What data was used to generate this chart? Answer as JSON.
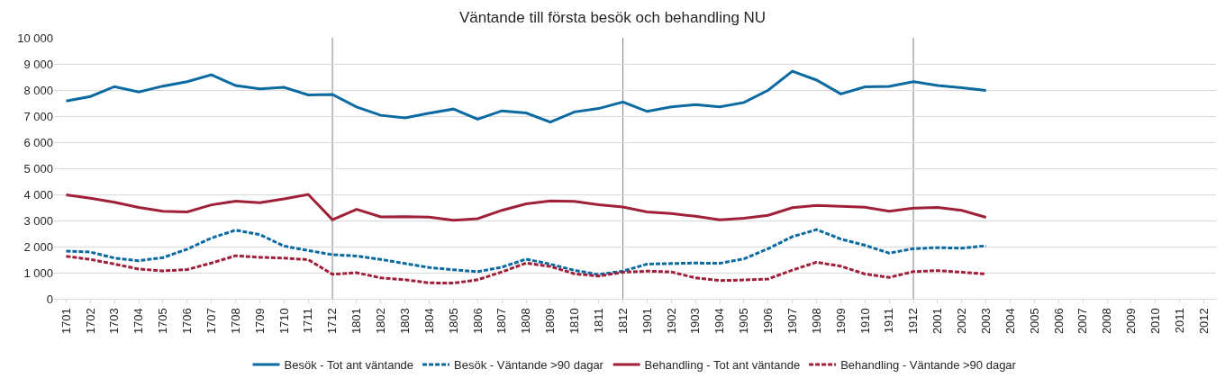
{
  "chart_data": {
    "type": "line",
    "title": "Väntande till första besök och behandling NU",
    "categories": [
      "1701",
      "1702",
      "1703",
      "1704",
      "1705",
      "1706",
      "1707",
      "1708",
      "1709",
      "1710",
      "1711",
      "1712",
      "1801",
      "1802",
      "1803",
      "1804",
      "1805",
      "1806",
      "1807",
      "1808",
      "1809",
      "1810",
      "1811",
      "1812",
      "1901",
      "1902",
      "1903",
      "1904",
      "1905",
      "1906",
      "1907",
      "1908",
      "1909",
      "1910",
      "1911",
      "1912",
      "2001",
      "2002",
      "2003",
      "2004",
      "2005",
      "2006",
      "2007",
      "2008",
      "2009",
      "2010",
      "2011",
      "2012"
    ],
    "series": [
      {
        "name": "Besök - Tot ant väntande",
        "color": "#0a6aa1",
        "line_style": "solid",
        "values": [
          7580,
          7750,
          8130,
          7920,
          8150,
          8320,
          8580,
          8170,
          8040,
          8100,
          7810,
          7830,
          7350,
          7030,
          6930,
          7110,
          7270,
          6880,
          7200,
          7120,
          6770,
          7160,
          7290,
          7540,
          7180,
          7350,
          7440,
          7350,
          7520,
          7990,
          8720,
          8380,
          7850,
          8120,
          8140,
          8320,
          8170,
          8090,
          7980,
          null,
          null,
          null,
          null,
          null,
          null,
          null,
          null,
          null
        ]
      },
      {
        "name": "Besök - Väntande >90 dagar",
        "color": "#0a6aa1",
        "line_style": "dashed",
        "values": [
          1830,
          1790,
          1560,
          1460,
          1580,
          1900,
          2330,
          2630,
          2460,
          2020,
          1850,
          1690,
          1640,
          1510,
          1350,
          1200,
          1110,
          1040,
          1210,
          1520,
          1330,
          1090,
          930,
          1060,
          1330,
          1350,
          1370,
          1360,
          1530,
          1920,
          2380,
          2650,
          2290,
          2050,
          1750,
          1920,
          1960,
          1940,
          2030,
          null,
          null,
          null,
          null,
          null,
          null,
          null,
          null,
          null
        ]
      },
      {
        "name": "Behandling - Tot ant väntande",
        "color": "#a0203a",
        "line_style": "solid",
        "values": [
          3980,
          3850,
          3700,
          3500,
          3350,
          3330,
          3600,
          3740,
          3680,
          3830,
          4000,
          3030,
          3430,
          3140,
          3150,
          3130,
          3010,
          3070,
          3390,
          3640,
          3750,
          3730,
          3600,
          3520,
          3330,
          3270,
          3160,
          3030,
          3090,
          3200,
          3490,
          3580,
          3540,
          3510,
          3350,
          3470,
          3500,
          3390,
          3120,
          null,
          null,
          null,
          null,
          null,
          null,
          null,
          null,
          null
        ]
      },
      {
        "name": "Behandling - Väntande >90 dagar",
        "color": "#a0203a",
        "line_style": "dashed",
        "values": [
          1630,
          1510,
          1330,
          1140,
          1070,
          1120,
          1370,
          1650,
          1590,
          1560,
          1500,
          940,
          1000,
          800,
          730,
          610,
          600,
          730,
          1030,
          1370,
          1240,
          960,
          870,
          1020,
          1060,
          1030,
          800,
          700,
          720,
          760,
          1100,
          1400,
          1250,
          950,
          820,
          1040,
          1080,
          1020,
          950,
          null,
          null,
          null,
          null,
          null,
          null,
          null,
          null,
          null
        ]
      }
    ],
    "ylim": [
      0,
      10000
    ],
    "yticks": [
      0,
      {
        "value": 1000,
        "label": "1 000"
      },
      {
        "value": 2000,
        "label": "2 000"
      },
      {
        "value": 3000,
        "label": "3 000"
      },
      {
        "value": 4000,
        "label": "4 000"
      },
      {
        "value": 5000,
        "label": "5 000"
      },
      {
        "value": 6000,
        "label": "6 000"
      },
      {
        "value": 7000,
        "label": "7 000"
      },
      {
        "value": 8000,
        "label": "8 000"
      },
      {
        "value": 9000,
        "label": "9 000"
      },
      {
        "value": 10000,
        "label": "10 000"
      }
    ],
    "ref_lines": [
      {
        "axis": "x",
        "value": "1712",
        "color": "#808080"
      },
      {
        "axis": "x",
        "value": "1812",
        "color": "#808080"
      },
      {
        "axis": "x",
        "value": "1912",
        "color": "#808080"
      }
    ],
    "grid": "y",
    "legend": "bottom",
    "marker": "none"
  }
}
